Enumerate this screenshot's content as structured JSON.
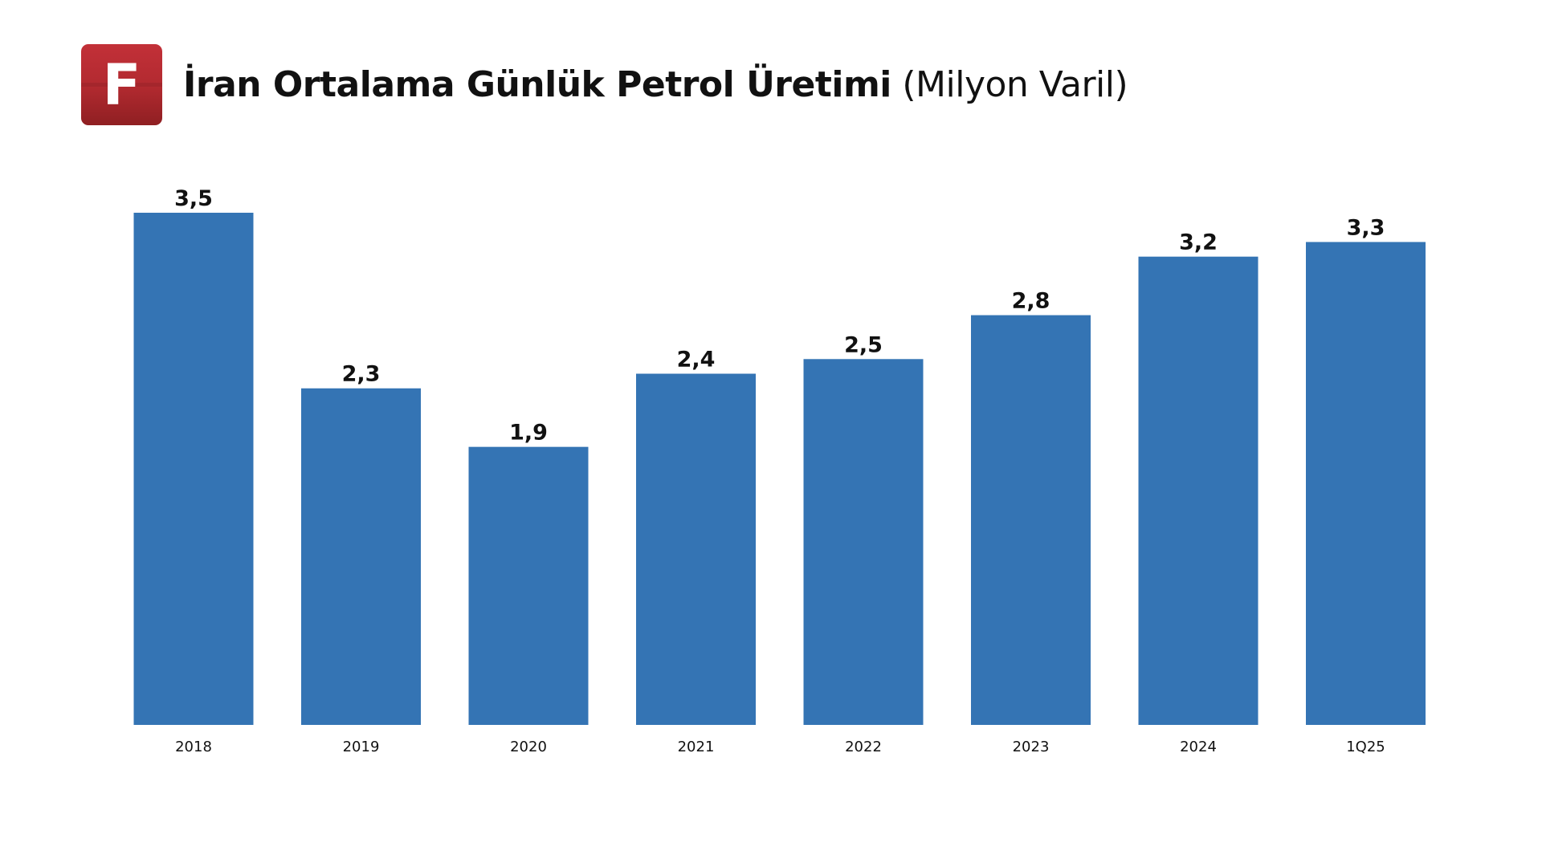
{
  "header": {
    "logo_letter": "F",
    "title_main": "İran Ortalama Günlük Petrol Üretimi",
    "title_unit": "(Milyon Varil)"
  },
  "colors": {
    "bar": "#3474b4",
    "label": "#111111",
    "logo": "#b22a30"
  },
  "chart_data": {
    "type": "bar",
    "title": "İran Ortalama Günlük Petrol Üretimi (Milyon Varil)",
    "xlabel": "",
    "ylabel": "",
    "categories": [
      "2018",
      "2019",
      "2020",
      "2021",
      "2022",
      "2023",
      "2024",
      "1Q25"
    ],
    "values": [
      3.5,
      2.3,
      1.9,
      2.4,
      2.5,
      2.8,
      3.2,
      3.3
    ],
    "value_labels": [
      "3,5",
      "2,3",
      "1,9",
      "2,4",
      "2,5",
      "2,8",
      "3,2",
      "3,3"
    ],
    "ylim": [
      0,
      3.5
    ],
    "grid": false,
    "legend": "none"
  }
}
